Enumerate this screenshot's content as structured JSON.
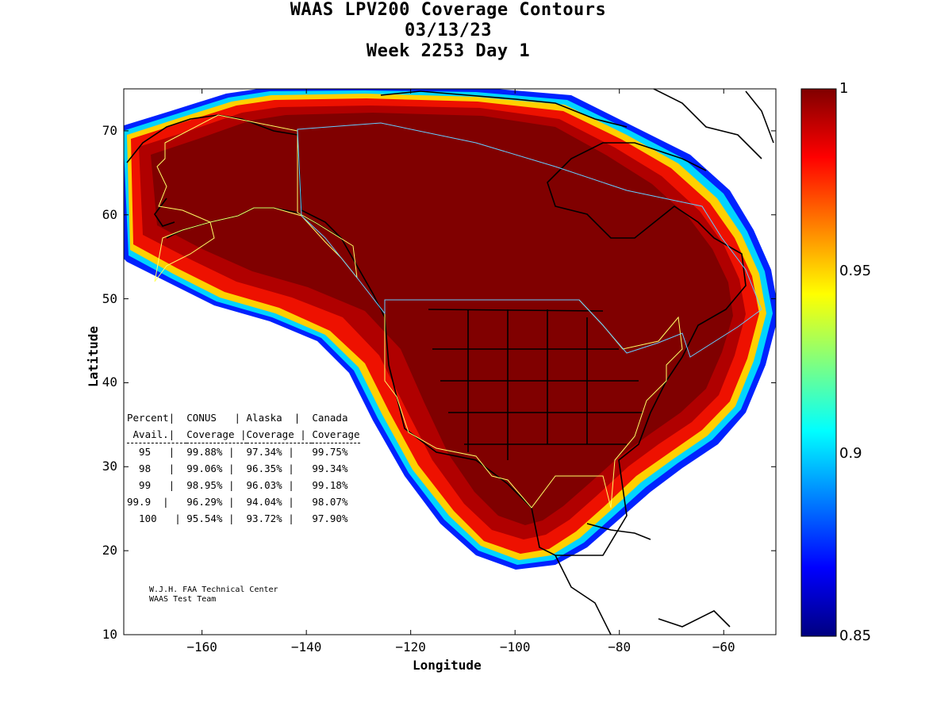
{
  "title": {
    "line1": "WAAS LPV200 Coverage Contours",
    "line2": "03/13/23",
    "line3": "Week 2253 Day 1"
  },
  "chart_data": {
    "type": "heatmap",
    "title": "WAAS LPV200 Coverage Contours",
    "xlabel": "Longitude",
    "ylabel": "Latitude",
    "xlim": [
      -175,
      -50
    ],
    "ylim": [
      10,
      75
    ],
    "xticks": [
      -160,
      -140,
      -120,
      -100,
      -80,
      -60
    ],
    "yticks": [
      10,
      20,
      30,
      40,
      50,
      60,
      70
    ],
    "colorbar": {
      "range": [
        0.85,
        1
      ],
      "ticks": [
        "1",
        "0.95",
        "0.9",
        "0.85"
      ],
      "colormap": "jet"
    },
    "coverage_table": {
      "header_row1": [
        "Percent",
        "CONUS",
        "Alaska",
        "Canada"
      ],
      "header_row2": [
        "Avail.",
        "Coverage",
        "Coverage",
        "Coverage"
      ],
      "rows": [
        {
          "percent": "95",
          "conus": "99.88%",
          "alaska": "97.34%",
          "canada": "99.75%"
        },
        {
          "percent": "98",
          "conus": "99.06%",
          "alaska": "96.35%",
          "canada": "99.34%"
        },
        {
          "percent": "99",
          "conus": "98.95%",
          "alaska": "96.03%",
          "canada": "99.18%"
        },
        {
          "percent": "99.9",
          "conus": "96.29%",
          "alaska": "94.04%",
          "canada": "98.07%"
        },
        {
          "percent": "100",
          "conus": "95.54%",
          "alaska": "93.72%",
          "canada": "97.90%"
        }
      ]
    }
  },
  "credit": {
    "line1": "W.J.H. FAA Technical Center",
    "line2": "WAAS Test Team"
  },
  "colors": {
    "max": "#800000",
    "high": "#ff0000",
    "mid": "#ffff00",
    "low_mid": "#00ffff",
    "low": "#0000ff",
    "min": "#000080",
    "conus_border": "#ffff66",
    "canada_border": "#66ccff"
  }
}
